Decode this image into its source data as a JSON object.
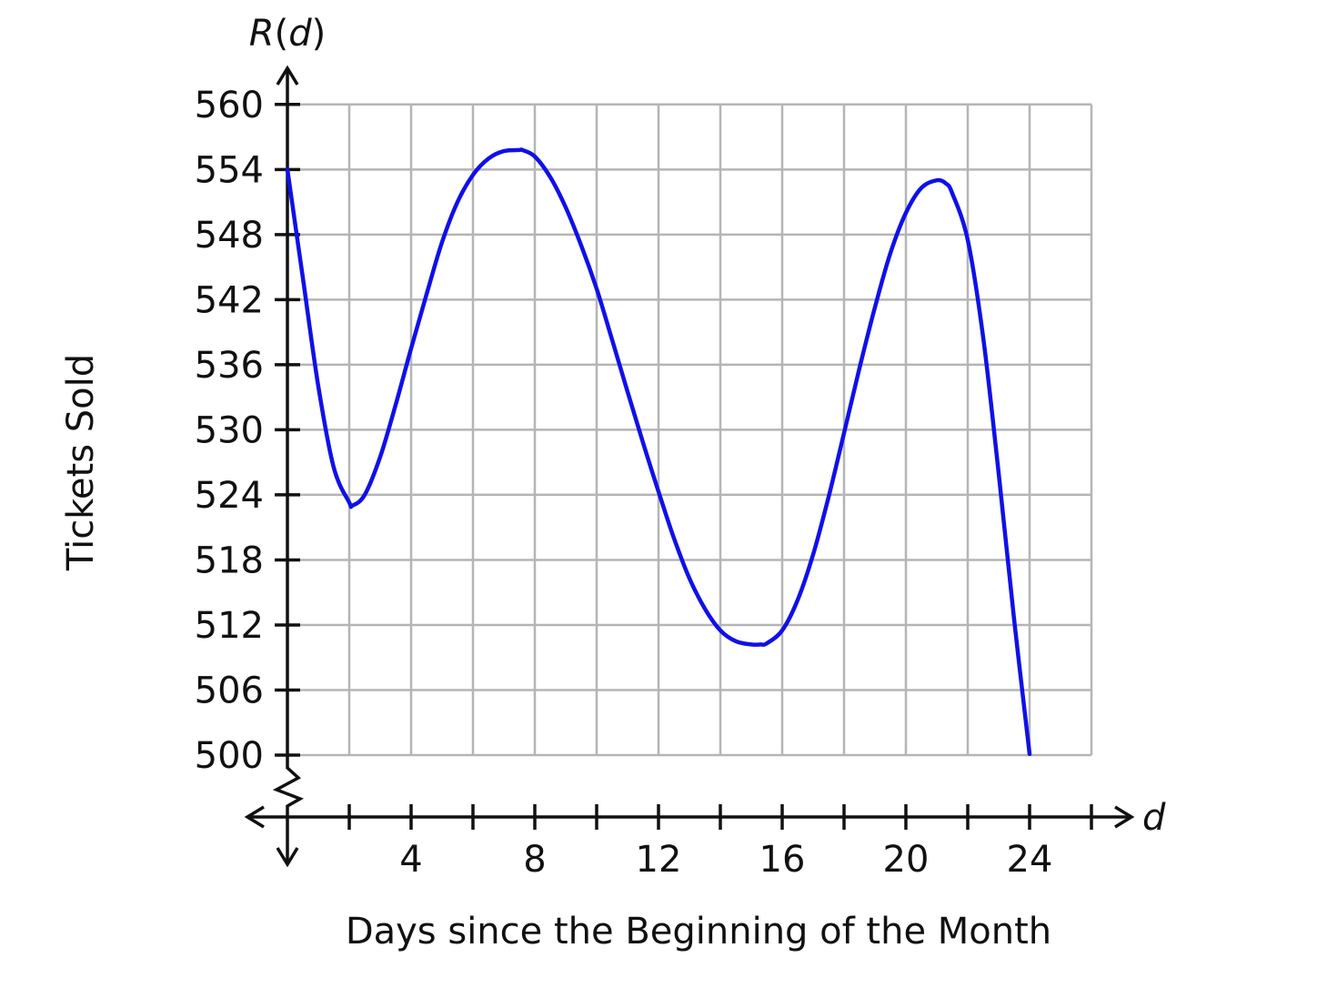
{
  "chart_data": {
    "type": "line",
    "xlabel": "Days since the Beginning of the Month",
    "ylabel": "Tickets Sold",
    "x_axis_name": "d",
    "y_axis_name_func": "R",
    "y_axis_name_arg": "d",
    "y_axis_name_open": "(",
    "y_axis_name_close": ")",
    "xlim": [
      0,
      26
    ],
    "ylim": [
      500,
      560
    ],
    "y_axis_break": true,
    "grid": true,
    "x_ticks": [
      2,
      4,
      6,
      8,
      10,
      12,
      14,
      16,
      18,
      20,
      22,
      24,
      26
    ],
    "x_tick_labels": [
      {
        "value": 4,
        "label": "4"
      },
      {
        "value": 8,
        "label": "8"
      },
      {
        "value": 12,
        "label": "12"
      },
      {
        "value": 16,
        "label": "16"
      },
      {
        "value": 20,
        "label": "20"
      },
      {
        "value": 24,
        "label": "24"
      }
    ],
    "y_ticks": [
      500,
      506,
      512,
      518,
      524,
      530,
      536,
      542,
      548,
      554,
      560
    ],
    "y_tick_labels": [
      "500",
      "506",
      "512",
      "518",
      "524",
      "530",
      "536",
      "542",
      "548",
      "554",
      "560"
    ],
    "series": [
      {
        "color": "#1010e8",
        "x": [
          0,
          0.5,
          1,
          1.5,
          2,
          2.1,
          2.5,
          3,
          3.5,
          4,
          4.5,
          5,
          5.5,
          6,
          6.5,
          7,
          7.5,
          7.6,
          8,
          8.5,
          9,
          9.5,
          10,
          10.5,
          11,
          11.5,
          12,
          12.5,
          13,
          13.5,
          14,
          14.5,
          15,
          15.3,
          15.5,
          16,
          16.5,
          17,
          17.5,
          18,
          18.5,
          19,
          19.5,
          20,
          20.5,
          21,
          21.3,
          21.5,
          22,
          22.5,
          23,
          23.5,
          24
        ],
        "y": [
          554,
          544,
          534,
          526.5,
          523.3,
          523,
          524,
          527.5,
          532.3,
          537.5,
          542.5,
          547.3,
          551,
          553.5,
          555,
          555.7,
          555.8,
          555.8,
          555.2,
          553.3,
          550.5,
          547,
          543,
          538.3,
          533.5,
          528.8,
          524.3,
          520,
          516.3,
          513.5,
          511.5,
          510.5,
          510.2,
          510.2,
          510.3,
          511.5,
          514.3,
          518.5,
          523.8,
          529.7,
          535.7,
          541.3,
          546.3,
          550,
          552.3,
          553,
          552.7,
          551.8,
          547.5,
          538.5,
          526,
          512.5,
          500.1
        ]
      }
    ]
  }
}
